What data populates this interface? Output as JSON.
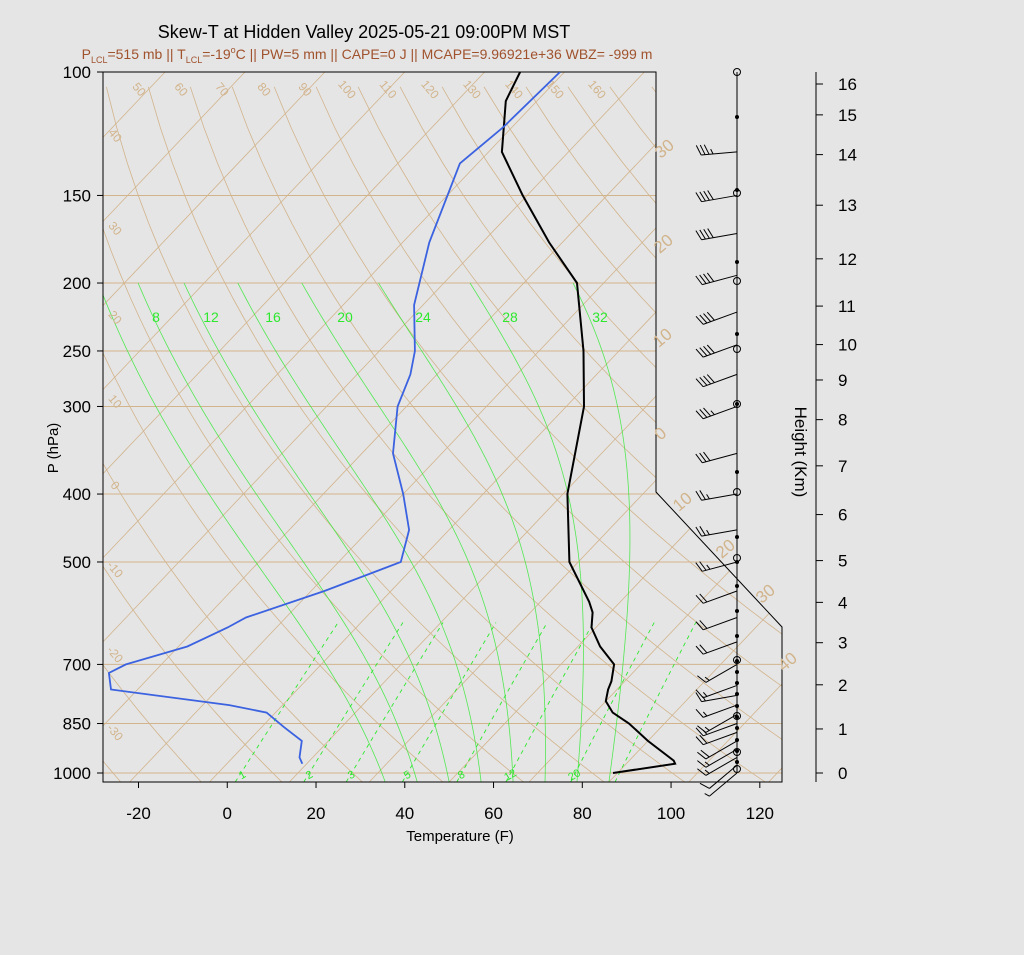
{
  "chart_data": {
    "type": "line",
    "title": "Skew-T at Hidden Valley 2025-05-21 09:00PM MST",
    "subtitle": {
      "p_label": "P",
      "p_sub": "LCL",
      "p_val": "=515 mb || ",
      "t_label": "T",
      "t_sub": "LCL",
      "t_val": "=-19",
      "deg": "o",
      "rest": "C || PW=5 mm || CAPE=0 J || MCAPE=9.96921e+36 WBZ= -999 m"
    },
    "xlabel": "Temperature (F)",
    "ylabel": "P (hPa)",
    "y2label": "Height (Km)",
    "xticks": [
      -20,
      0,
      20,
      40,
      60,
      80,
      100,
      120
    ],
    "xlim": [
      -28,
      125
    ],
    "yticks": [
      100,
      150,
      200,
      250,
      300,
      400,
      500,
      700,
      850,
      1000
    ],
    "ylim": [
      1030,
      100
    ],
    "height_ticks": [
      0,
      1,
      2,
      3,
      4,
      5,
      6,
      7,
      8,
      9,
      10,
      11,
      12,
      13,
      14,
      15,
      16
    ],
    "mixing_ratio_labels": [
      "1",
      "2",
      "3",
      "5",
      "8",
      "12",
      "20"
    ],
    "theta_e_labels": [
      "8",
      "12",
      "16",
      "20",
      "24",
      "28",
      "32"
    ],
    "isotherm_labels_left": [
      "50",
      "60",
      "70",
      "80",
      "90",
      "100",
      "110",
      "120",
      "130",
      "140",
      "150",
      "160"
    ],
    "isotherm_labels_side": [
      "40",
      "30",
      "20",
      "10",
      "0",
      "-10",
      "-20",
      "-30"
    ],
    "dry_adiabat_labels": [
      "30",
      "20",
      "10",
      "0",
      "10",
      "20",
      "30",
      "40"
    ],
    "grid": true,
    "series": [
      {
        "color": "#000000",
        "points": [
          [
            1000,
            85
          ],
          [
            970,
            97
          ],
          [
            960,
            96
          ],
          [
            900,
            86
          ],
          [
            850,
            78
          ],
          [
            820,
            72
          ],
          [
            790,
            68
          ],
          [
            760,
            66
          ],
          [
            740,
            65
          ],
          [
            700,
            62
          ],
          [
            660,
            55
          ],
          [
            620,
            49
          ],
          [
            590,
            46
          ],
          [
            570,
            43
          ],
          [
            500,
            30
          ],
          [
            400,
            15
          ],
          [
            300,
            0
          ],
          [
            250,
            -12
          ],
          [
            200,
            -28
          ],
          [
            175,
            -43
          ],
          [
            150,
            -59
          ],
          [
            130,
            -73
          ],
          [
            110,
            -83
          ],
          [
            100,
            -86
          ]
        ]
      },
      {
        "color": "#3b62e0",
        "points": [
          [
            970,
            13
          ],
          [
            950,
            11
          ],
          [
            900,
            8
          ],
          [
            860,
            1
          ],
          [
            820,
            -6
          ],
          [
            800,
            -16
          ],
          [
            760,
            -46
          ],
          [
            720,
            -50
          ],
          [
            700,
            -48
          ],
          [
            660,
            -38
          ],
          [
            620,
            -33
          ],
          [
            600,
            -31
          ],
          [
            550,
            -19
          ],
          [
            500,
            -8
          ],
          [
            450,
            -13
          ],
          [
            400,
            -22
          ],
          [
            350,
            -33
          ],
          [
            300,
            -42
          ],
          [
            270,
            -46
          ],
          [
            250,
            -50
          ],
          [
            215,
            -60
          ],
          [
            175,
            -70
          ],
          [
            135,
            -80
          ],
          [
            120,
            -78
          ],
          [
            100,
            -77
          ]
        ]
      }
    ],
    "wind_barbs": [
      {
        "p": 1000,
        "dir": 230,
        "spd": 5
      },
      {
        "p": 975,
        "dir": 230,
        "spd": 10
      },
      {
        "p": 950,
        "dir": 240,
        "spd": 15
      },
      {
        "p": 925,
        "dir": 240,
        "spd": 15
      },
      {
        "p": 900,
        "dir": 240,
        "spd": 20
      },
      {
        "p": 875,
        "dir": 250,
        "spd": 20
      },
      {
        "p": 850,
        "dir": 250,
        "spd": 15
      },
      {
        "p": 825,
        "dir": 240,
        "spd": 15
      },
      {
        "p": 800,
        "dir": 250,
        "spd": 15
      },
      {
        "p": 775,
        "dir": 260,
        "spd": 15
      },
      {
        "p": 750,
        "dir": 250,
        "spd": 15
      },
      {
        "p": 700,
        "dir": 240,
        "spd": 15
      },
      {
        "p": 650,
        "dir": 250,
        "spd": 20
      },
      {
        "p": 600,
        "dir": 250,
        "spd": 20
      },
      {
        "p": 550,
        "dir": 250,
        "spd": 20
      },
      {
        "p": 500,
        "dir": 255,
        "spd": 25
      },
      {
        "p": 450,
        "dir": 260,
        "spd": 25
      },
      {
        "p": 400,
        "dir": 260,
        "spd": 25
      },
      {
        "p": 350,
        "dir": 255,
        "spd": 30
      },
      {
        "p": 300,
        "dir": 250,
        "spd": 35
      },
      {
        "p": 270,
        "dir": 250,
        "spd": 40
      },
      {
        "p": 245,
        "dir": 250,
        "spd": 40
      },
      {
        "p": 220,
        "dir": 250,
        "spd": 40
      },
      {
        "p": 195,
        "dir": 255,
        "spd": 40
      },
      {
        "p": 170,
        "dir": 260,
        "spd": 40
      },
      {
        "p": 150,
        "dir": 260,
        "spd": 40
      },
      {
        "p": 130,
        "dir": 265,
        "spd": 35
      }
    ]
  },
  "colors": {
    "background": "#e5e5e5",
    "isotherm": "#d2b48c",
    "moist": "#2ee82e",
    "temperature": "#000000",
    "dewpoint": "#3b62e0",
    "subtitle": "#a0522d"
  }
}
